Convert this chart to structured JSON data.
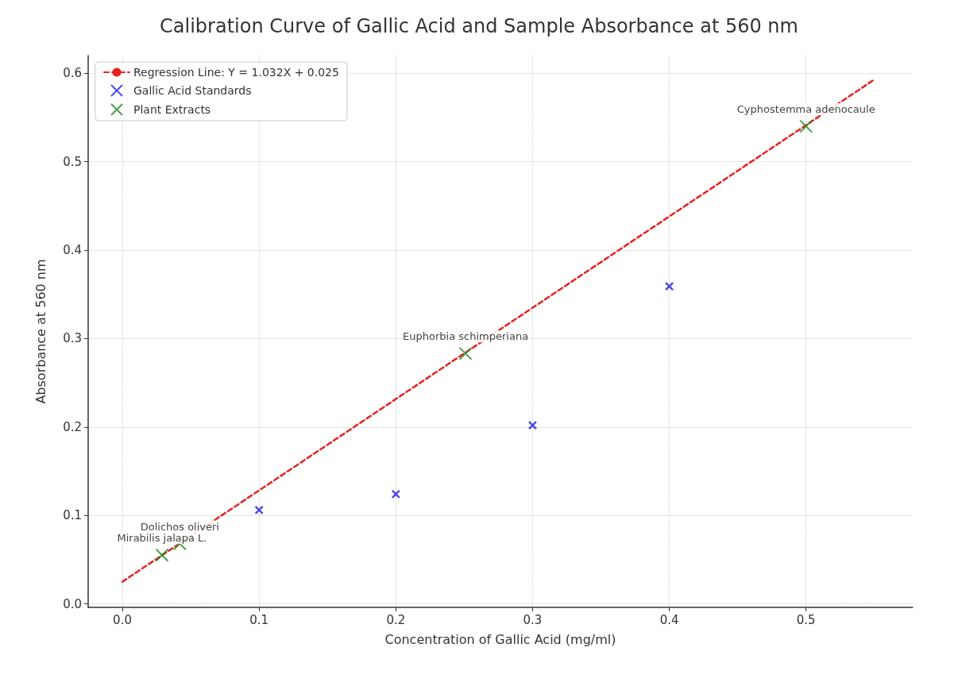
{
  "chart_data": {
    "type": "scatter",
    "title": "Calibration Curve of Gallic Acid and Sample Absorbance at 560 nm",
    "xlabel": "Concentration of Gallic Acid (mg/ml)",
    "ylabel": "Absorbance at 560 nm",
    "xlim": [
      -0.025,
      0.578
    ],
    "ylim": [
      -0.004,
      0.62
    ],
    "xticks": [
      {
        "value": 0,
        "label": "0.0"
      },
      0.1,
      0.2,
      0.3,
      0.4,
      0.5
    ],
    "yticks": [
      {
        "value": 0,
        "label": "0.0"
      },
      0.1,
      0.2,
      0.3,
      0.4,
      0.5,
      0.6
    ],
    "grid": true,
    "legend": "top left",
    "series": [
      {
        "name": "Regression Line: Y = 1.032X + 0.025",
        "type": "line",
        "color": "#e8211f",
        "line_style": "dashed",
        "marker": "none",
        "x": [
          0,
          0.55
        ],
        "values": [
          0.025,
          0.593
        ]
      },
      {
        "name": "Gallic Acid Standards",
        "type": "scatter",
        "color": "#1f1fe8",
        "marker": "cross",
        "x": [
          0.1,
          0.2,
          0.3,
          0.4
        ],
        "values": [
          0.106,
          0.124,
          0.202,
          0.359
        ]
      },
      {
        "name": "Plant Extracts",
        "type": "scatter",
        "color": "#1f8a1f",
        "marker": "cross",
        "x": [
          0.029,
          0.042,
          0.251,
          0.5
        ],
        "values": [
          0.055,
          0.068,
          0.283,
          0.54
        ]
      }
    ],
    "annotations": [
      {
        "text": "Mirabilis jalapa L.",
        "x": 0.029,
        "y": 0.055
      },
      {
        "text": "Dolichos oliveri",
        "x": 0.042,
        "y": 0.068
      },
      {
        "text": "Euphorbia schimperiana",
        "x": 0.251,
        "y": 0.283
      },
      {
        "text": "Cyphostemma adenocaule",
        "x": 0.5,
        "y": 0.54
      }
    ]
  }
}
